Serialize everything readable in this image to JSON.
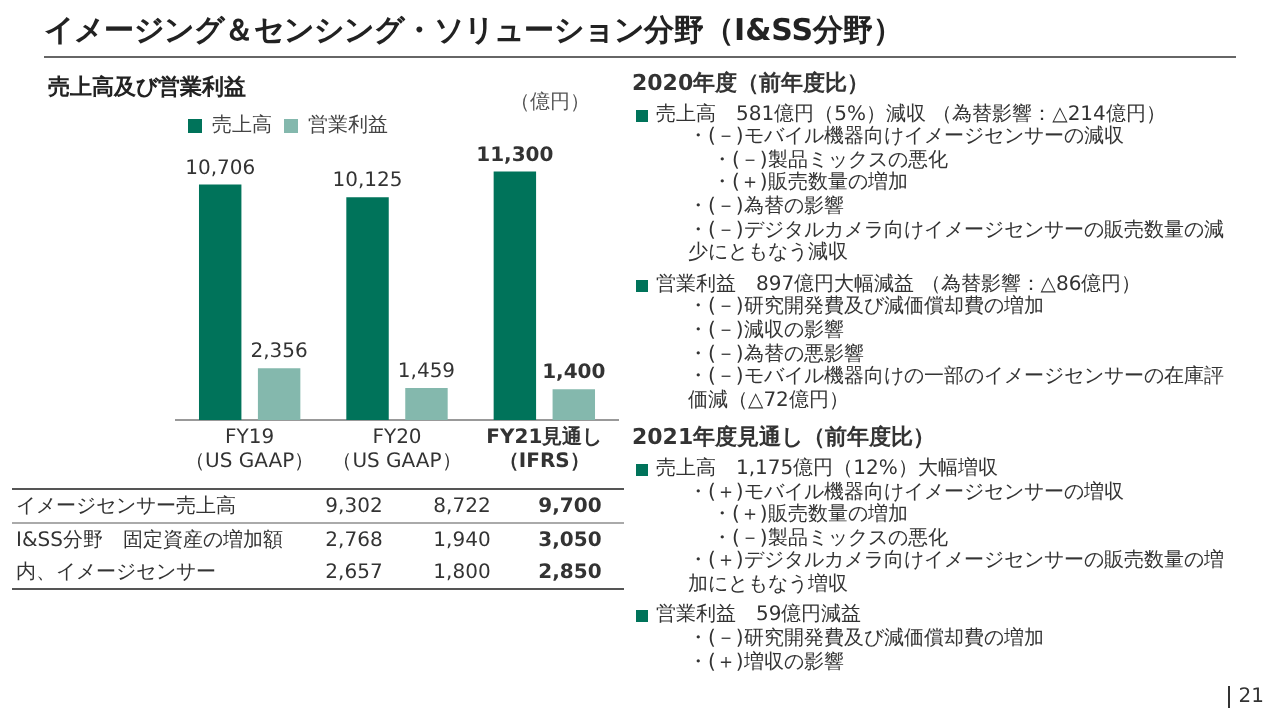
{
  "chart_data": {
    "type": "bar",
    "title": "イメージング＆センシング・ソリューション分野（I&SS分野）",
    "subtitle": "売上高及び営業利益",
    "categories": [
      "FY19（US GAAP）",
      "FY20（US GAAP）",
      "FY21見通し（IFRS）"
    ],
    "series": [
      {
        "name": "売上高",
        "color": "#00735a",
        "values": [
          10706,
          10125,
          11300
        ],
        "value_labels": [
          "10,706",
          "10,125",
          "11,300"
        ]
      },
      {
        "name": "営業利益",
        "color": "#84b8ad",
        "values": [
          2356,
          1459,
          1400
        ],
        "value_labels": [
          "2,356",
          "1,459",
          "1,400"
        ]
      }
    ],
    "legend": "top left",
    "grid": false,
    "annotations": [
      "（億円）",
      "イメージセンサー売上高",
      "9,302",
      "8,722",
      "9,700",
      "I&SS分野　固定資産の増加額",
      "2,768",
      "1,940",
      "3,050",
      "内、イメージセンサー",
      "2,657",
      "1,800",
      "2,850",
      "21",
      "2020年度（前年度比）",
      "売上高　581億円（5%）減収 （為替影響：△214億円）",
      "・(－)モバイル機器向けイメージセンサーの減収",
      "・(－)製品ミックスの悪化",
      "・(＋)販売数量の増加",
      "・(－)為替の影響",
      "・(－)デジタルカメラ向けイメージセンサーの販売数量の減少にともなう減収",
      "営業利益　897億円大幅減益 （為替影響：△86億円）",
      "・(－)研究開発費及び減価償却費の増加",
      "・(－)減収の影響",
      "・(－)為替の悪影響",
      "・(－)モバイル機器向けの一部のイメージセンサーの在庫評価減（△72億円）",
      "2021年度見通し（前年度比）",
      "売上高　1,175億円（12%）大幅増収",
      "・(＋)モバイル機器向けイメージセンサーの増収",
      "・(＋)販売数量の増加",
      "・(－)製品ミックスの悪化",
      "・(＋)デジタルカメラ向けイメージセンサーの販売数量の増加にともなう増収",
      "営業利益　59億円減益",
      "・(－)研究開発費及び減価償却費の増加",
      "・(＋)増収の影響"
    ]
  }
}
